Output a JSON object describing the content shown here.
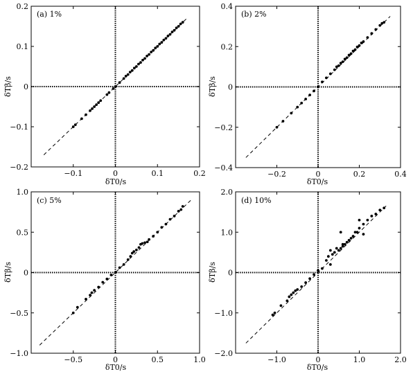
{
  "chart_data": [
    {
      "type": "scatter",
      "title": "(a) 1%",
      "xlabel": "δT0/s",
      "ylabel": "δTβ/s",
      "xlim": [
        -0.2,
        0.2
      ],
      "ylim": [
        -0.2,
        0.2
      ],
      "xticks": [
        -0.1,
        0,
        0.1,
        0.2
      ],
      "xtick_labels": [
        "−0.1",
        "0",
        "0.1",
        "0.2"
      ],
      "yticks": [
        -0.2,
        -0.1,
        0,
        0.1,
        0.2
      ],
      "ytick_labels": [
        "−0.2",
        "−0.1",
        "0",
        "0.1",
        "0.2"
      ],
      "reference_line": {
        "x": [
          -0.17,
          0.17
        ],
        "y": [
          -0.17,
          0.17
        ],
        "style": "dashed"
      },
      "zero_lines": true,
      "points": [
        [
          -0.1,
          -0.1
        ],
        [
          -0.095,
          -0.095
        ],
        [
          -0.08,
          -0.08
        ],
        [
          -0.07,
          -0.07
        ],
        [
          -0.06,
          -0.06
        ],
        [
          -0.055,
          -0.055
        ],
        [
          -0.05,
          -0.05
        ],
        [
          -0.045,
          -0.045
        ],
        [
          -0.04,
          -0.04
        ],
        [
          -0.035,
          -0.035
        ],
        [
          -0.02,
          -0.02
        ],
        [
          -0.015,
          -0.015
        ],
        [
          -0.005,
          -0.005
        ],
        [
          0.0,
          0.0
        ],
        [
          0.01,
          0.01
        ],
        [
          0.02,
          0.02
        ],
        [
          0.025,
          0.026
        ],
        [
          0.03,
          0.03
        ],
        [
          0.035,
          0.036
        ],
        [
          0.04,
          0.04
        ],
        [
          0.045,
          0.046
        ],
        [
          0.05,
          0.05
        ],
        [
          0.055,
          0.056
        ],
        [
          0.06,
          0.06
        ],
        [
          0.065,
          0.066
        ],
        [
          0.07,
          0.07
        ],
        [
          0.075,
          0.076
        ],
        [
          0.08,
          0.08
        ],
        [
          0.085,
          0.086
        ],
        [
          0.09,
          0.09
        ],
        [
          0.095,
          0.096
        ],
        [
          0.1,
          0.1
        ],
        [
          0.105,
          0.106
        ],
        [
          0.11,
          0.11
        ],
        [
          0.115,
          0.116
        ],
        [
          0.12,
          0.12
        ],
        [
          0.125,
          0.126
        ],
        [
          0.13,
          0.13
        ],
        [
          0.135,
          0.136
        ],
        [
          0.14,
          0.14
        ],
        [
          0.145,
          0.146
        ],
        [
          0.15,
          0.15
        ],
        [
          0.155,
          0.156
        ],
        [
          0.16,
          0.16
        ]
      ]
    },
    {
      "type": "scatter",
      "title": "(b) 2%",
      "xlabel": "δT0/s",
      "ylabel": "δTβ/s",
      "xlim": [
        -0.4,
        0.4
      ],
      "ylim": [
        -0.4,
        0.4
      ],
      "xticks": [
        -0.2,
        0,
        0.2,
        0.4
      ],
      "xtick_labels": [
        "−0.2",
        "0",
        "0.2",
        "0.4"
      ],
      "yticks": [
        -0.4,
        -0.2,
        0,
        0.2,
        0.4
      ],
      "ytick_labels": [
        "−0.4",
        "−0.2",
        "0",
        "0.2",
        "0.4"
      ],
      "reference_line": {
        "x": [
          -0.35,
          0.35
        ],
        "y": [
          -0.35,
          0.35
        ],
        "style": "dashed"
      },
      "zero_lines": true,
      "points": [
        [
          -0.2,
          -0.2
        ],
        [
          -0.17,
          -0.17
        ],
        [
          -0.13,
          -0.13
        ],
        [
          -0.1,
          -0.1
        ],
        [
          -0.08,
          -0.08
        ],
        [
          -0.06,
          -0.06
        ],
        [
          -0.04,
          -0.04
        ],
        [
          -0.02,
          -0.02
        ],
        [
          0.0,
          0.0
        ],
        [
          0.02,
          0.025
        ],
        [
          0.04,
          0.045
        ],
        [
          0.06,
          0.065
        ],
        [
          0.08,
          0.085
        ],
        [
          0.09,
          0.1
        ],
        [
          0.1,
          0.105
        ],
        [
          0.11,
          0.118
        ],
        [
          0.12,
          0.125
        ],
        [
          0.13,
          0.138
        ],
        [
          0.14,
          0.145
        ],
        [
          0.15,
          0.158
        ],
        [
          0.16,
          0.165
        ],
        [
          0.17,
          0.178
        ],
        [
          0.18,
          0.185
        ],
        [
          0.19,
          0.198
        ],
        [
          0.2,
          0.205
        ],
        [
          0.21,
          0.218
        ],
        [
          0.22,
          0.225
        ],
        [
          0.24,
          0.245
        ],
        [
          0.26,
          0.265
        ],
        [
          0.28,
          0.285
        ],
        [
          0.3,
          0.305
        ],
        [
          0.31,
          0.315
        ],
        [
          0.32,
          0.32
        ]
      ]
    },
    {
      "type": "scatter",
      "title": "(c) 5%",
      "xlabel": "δT0/s",
      "ylabel": "δTβ/s",
      "xlim": [
        -1.0,
        1.0
      ],
      "ylim": [
        -1.0,
        1.0
      ],
      "xticks": [
        -0.5,
        0,
        0.5,
        1.0
      ],
      "xtick_labels": [
        "−0.5",
        "0",
        "0.5",
        "1.0"
      ],
      "yticks": [
        -1.0,
        -0.5,
        0,
        0.5,
        1.0
      ],
      "ytick_labels": [
        "−1.0",
        "−0.5",
        "0",
        "0.5",
        "1.0"
      ],
      "reference_line": {
        "x": [
          -0.9,
          0.9
        ],
        "y": [
          -0.9,
          0.9
        ],
        "style": "dashed"
      },
      "zero_lines": true,
      "points": [
        [
          -0.5,
          -0.5
        ],
        [
          -0.45,
          -0.43
        ],
        [
          -0.35,
          -0.33
        ],
        [
          -0.3,
          -0.28
        ],
        [
          -0.28,
          -0.25
        ],
        [
          -0.25,
          -0.22
        ],
        [
          -0.2,
          -0.18
        ],
        [
          -0.15,
          -0.12
        ],
        [
          -0.1,
          -0.08
        ],
        [
          -0.05,
          -0.03
        ],
        [
          0.0,
          0.0
        ],
        [
          0.05,
          0.06
        ],
        [
          0.1,
          0.1
        ],
        [
          0.15,
          0.16
        ],
        [
          0.18,
          0.2
        ],
        [
          0.2,
          0.24
        ],
        [
          0.22,
          0.26
        ],
        [
          0.25,
          0.28
        ],
        [
          0.28,
          0.31
        ],
        [
          0.3,
          0.35
        ],
        [
          0.32,
          0.36
        ],
        [
          0.35,
          0.37
        ],
        [
          0.38,
          0.38
        ],
        [
          0.4,
          0.41
        ],
        [
          0.45,
          0.45
        ],
        [
          0.5,
          0.5
        ],
        [
          0.55,
          0.56
        ],
        [
          0.6,
          0.6
        ],
        [
          0.65,
          0.66
        ],
        [
          0.7,
          0.7
        ],
        [
          0.75,
          0.76
        ],
        [
          0.78,
          0.78
        ],
        [
          0.8,
          0.82
        ]
      ]
    },
    {
      "type": "scatter",
      "title": "(d) 10%",
      "xlabel": "δT0/s",
      "ylabel": "δTβ/s",
      "xlim": [
        -2.0,
        2.0
      ],
      "ylim": [
        -2.0,
        2.0
      ],
      "xticks": [
        -1.0,
        0,
        1.0,
        2.0
      ],
      "xtick_labels": [
        "−1.0",
        "0",
        "1.0",
        "2.0"
      ],
      "yticks": [
        -2.0,
        -1.0,
        0,
        1.0,
        2.0
      ],
      "ytick_labels": [
        "−2.0",
        "−1.0",
        "0",
        "1.0",
        "2.0"
      ],
      "reference_line": {
        "x": [
          -1.75,
          1.65
        ],
        "y": [
          -1.75,
          1.65
        ],
        "style": "dashed"
      },
      "zero_lines": true,
      "points": [
        [
          -1.1,
          -1.05
        ],
        [
          -1.05,
          -1.0
        ],
        [
          -0.9,
          -0.82
        ],
        [
          -0.75,
          -0.7
        ],
        [
          -0.7,
          -0.6
        ],
        [
          -0.65,
          -0.55
        ],
        [
          -0.6,
          -0.5
        ],
        [
          -0.55,
          -0.45
        ],
        [
          -0.5,
          -0.42
        ],
        [
          -0.4,
          -0.35
        ],
        [
          -0.3,
          -0.25
        ],
        [
          -0.2,
          -0.15
        ],
        [
          -0.1,
          -0.05
        ],
        [
          0.0,
          0.05
        ],
        [
          0.1,
          0.1
        ],
        [
          0.2,
          0.3
        ],
        [
          0.25,
          0.4
        ],
        [
          0.3,
          0.55
        ],
        [
          0.35,
          0.45
        ],
        [
          0.4,
          0.5
        ],
        [
          0.45,
          0.6
        ],
        [
          0.5,
          0.55
        ],
        [
          0.55,
          0.6
        ],
        [
          0.6,
          0.65
        ],
        [
          0.65,
          0.7
        ],
        [
          0.7,
          0.75
        ],
        [
          0.75,
          0.8
        ],
        [
          0.8,
          0.85
        ],
        [
          0.85,
          0.9
        ],
        [
          0.9,
          1.0
        ],
        [
          0.95,
          1.0
        ],
        [
          1.0,
          1.1
        ],
        [
          1.1,
          1.2
        ],
        [
          1.2,
          1.3
        ],
        [
          1.3,
          1.4
        ],
        [
          1.4,
          1.45
        ],
        [
          1.5,
          1.55
        ],
        [
          1.6,
          1.6
        ],
        [
          0.55,
          1.0
        ],
        [
          1.1,
          0.95
        ],
        [
          1.0,
          1.3
        ],
        [
          0.3,
          0.2
        ],
        [
          0.6,
          0.7
        ]
      ]
    }
  ]
}
